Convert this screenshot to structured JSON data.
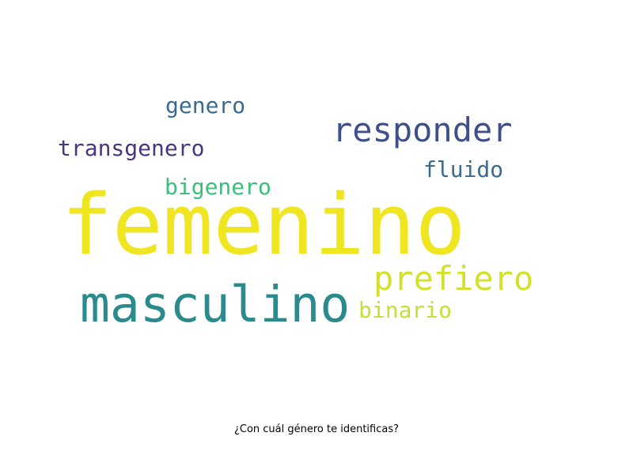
{
  "chart_data": {
    "type": "wordcloud",
    "title": "",
    "caption": "¿Con cuál género te identificas?",
    "words": [
      {
        "text": "femenino",
        "weight": 100,
        "color": "#f0e521"
      },
      {
        "text": "masculino",
        "weight": 58,
        "color": "#2a8a8c"
      },
      {
        "text": "responder",
        "weight": 40,
        "color": "#3e4f8a"
      },
      {
        "text": "prefiero",
        "weight": 40,
        "color": "#d4e12c"
      },
      {
        "text": "transgenero",
        "weight": 26,
        "color": "#47377f"
      },
      {
        "text": "genero",
        "weight": 26,
        "color": "#3a6b8f"
      },
      {
        "text": "fluido",
        "weight": 26,
        "color": "#3a6b8f"
      },
      {
        "text": "bigenero",
        "weight": 26,
        "color": "#3cbf7b"
      },
      {
        "text": "binario",
        "weight": 26,
        "color": "#c4df36"
      }
    ]
  }
}
